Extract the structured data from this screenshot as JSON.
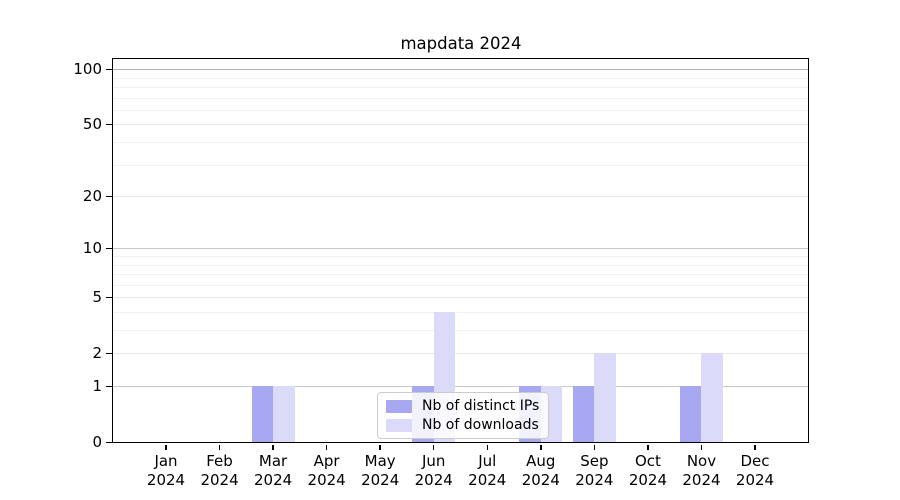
{
  "figure": {
    "title": "mapdata 2024"
  },
  "legend": {
    "items": [
      {
        "label": "Nb of distinct IPs",
        "series": "distinct-ips"
      },
      {
        "label": "Nb of downloads",
        "series": "downloads"
      }
    ]
  },
  "colors": {
    "bar_distinct_ips": "#a8a8f2",
    "bar_downloads": "#dbdbf9",
    "grid_power_strong": "#b3b3b3",
    "grid_power_mid": "#c9c9c9",
    "grid_major_light": "#e8e8e8",
    "grid_minor": "#f1f1f1",
    "axis": "#000000",
    "legend_border": "#cccccc"
  },
  "chart_data": {
    "type": "bar",
    "title": "mapdata 2024",
    "categories": [
      "Jan",
      "Feb",
      "Mar",
      "Apr",
      "May",
      "Jun",
      "Jul",
      "Aug",
      "Sep",
      "Oct",
      "Nov",
      "Dec"
    ],
    "x_year": "2024",
    "series": [
      {
        "name": "Nb of distinct IPs",
        "values": [
          0,
          0,
          1,
          0,
          0,
          1,
          0,
          1,
          1,
          0,
          1,
          0
        ]
      },
      {
        "name": "Nb of downloads",
        "values": [
          0,
          0,
          1,
          0,
          0,
          4,
          0,
          1,
          2,
          0,
          2,
          0
        ]
      }
    ],
    "yscale": "log1p",
    "ylim": [
      0,
      116
    ],
    "y_major_ticks": [
      0,
      1,
      2,
      5,
      10,
      20,
      50,
      100
    ],
    "y_minor_ticks": [
      3,
      4,
      6,
      7,
      8,
      9,
      30,
      40,
      60,
      70,
      80,
      90
    ],
    "grid": true,
    "legend_position": "lower center",
    "xlabel": "",
    "ylabel": ""
  }
}
